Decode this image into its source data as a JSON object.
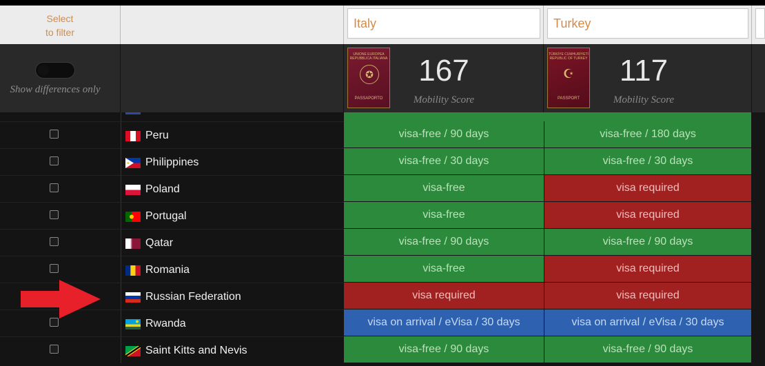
{
  "filter": {
    "select_label_line1": "Select",
    "select_label_line2": "to filter",
    "country1_value": "Italy",
    "country2_value": "Turkey"
  },
  "header": {
    "toggle_label": "Show differences only",
    "passport1": {
      "score": "167",
      "score_label": "Mobility Score",
      "cover_top": "UNIONE EUROPEA REPUBBLICA ITALIANA",
      "cover_bottom": "PASSAPORTO"
    },
    "passport2": {
      "score": "117",
      "score_label": "Mobility Score",
      "cover_top": "TÜRKİYE CUMHURİYETİ REPUBLIC OF TURKEY",
      "cover_bottom": "PASSPORT"
    }
  },
  "colors": {
    "visa_free": "#2c8a3c",
    "visa_required": "#a12121",
    "visa_on_arrival": "#2e62b1",
    "filter_text": "#d38b4a",
    "arrow": "#e8202a"
  },
  "rows": [
    {
      "country": "Peru",
      "flag": "peru-flag",
      "italy": "visa-free / 90 days",
      "italy_type": "free",
      "turkey": "visa-free / 180 days",
      "turkey_type": "free"
    },
    {
      "country": "Philippines",
      "flag": "philippines-flag",
      "italy": "visa-free / 30 days",
      "italy_type": "free",
      "turkey": "visa-free / 30 days",
      "turkey_type": "free"
    },
    {
      "country": "Poland",
      "flag": "poland-flag",
      "italy": "visa-free",
      "italy_type": "free",
      "turkey": "visa required",
      "turkey_type": "req"
    },
    {
      "country": "Portugal",
      "flag": "portugal-flag",
      "italy": "visa-free",
      "italy_type": "free",
      "turkey": "visa required",
      "turkey_type": "req"
    },
    {
      "country": "Qatar",
      "flag": "qatar-flag",
      "italy": "visa-free / 90 days",
      "italy_type": "free",
      "turkey": "visa-free / 90 days",
      "turkey_type": "free"
    },
    {
      "country": "Romania",
      "flag": "romania-flag",
      "italy": "visa-free",
      "italy_type": "free",
      "turkey": "visa required",
      "turkey_type": "req"
    },
    {
      "country": "Russian Federation",
      "flag": "russia-flag",
      "italy": "visa required",
      "italy_type": "req",
      "turkey": "visa required",
      "turkey_type": "req"
    },
    {
      "country": "Rwanda",
      "flag": "rwanda-flag",
      "italy": "visa on arrival / eVisa / 30 days",
      "italy_type": "arr",
      "turkey": "visa on arrival / eVisa / 30 days",
      "turkey_type": "arr"
    },
    {
      "country": "Saint Kitts and Nevis",
      "flag": "saint-kitts-flag",
      "italy": "visa-free / 90 days",
      "italy_type": "free",
      "turkey": "visa-free / 90 days",
      "turkey_type": "free"
    }
  ]
}
